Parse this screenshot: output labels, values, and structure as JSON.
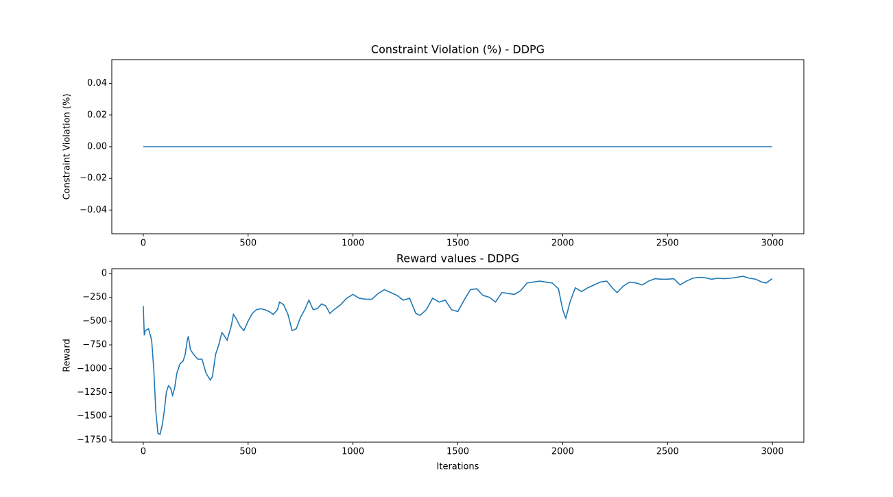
{
  "chart_data": [
    {
      "type": "line",
      "title": "Constraint Violation (%) - DDPG",
      "ylabel": "Constraint Violation (%)",
      "color": "#1f77b4",
      "x": [
        0,
        2999
      ],
      "values": [
        0,
        0
      ],
      "xlim": [
        -150,
        3150
      ],
      "xticks": [
        0,
        500,
        1000,
        1500,
        2000,
        2500,
        3000
      ],
      "ylim": [
        -0.055,
        0.055
      ],
      "yticks": [
        {
          "value": -0.04,
          "label": "−0.04"
        },
        {
          "value": -0.02,
          "label": "−0.02"
        },
        {
          "value": 0,
          "label": "0.00"
        },
        {
          "value": 0.02,
          "label": "0.02"
        },
        {
          "value": 0.04,
          "label": "0.04"
        }
      ]
    },
    {
      "type": "line",
      "title": "Reward values - DDPG",
      "ylabel": "Reward",
      "xlabel": "Iterations",
      "color": "#1f77b4",
      "x": [
        0,
        5,
        10,
        25,
        40,
        50,
        60,
        70,
        80,
        90,
        100,
        110,
        120,
        130,
        140,
        150,
        160,
        175,
        190,
        200,
        210,
        215,
        225,
        240,
        260,
        280,
        300,
        320,
        330,
        345,
        360,
        375,
        385,
        400,
        420,
        430,
        445,
        460,
        480,
        500,
        520,
        540,
        560,
        580,
        600,
        620,
        640,
        650,
        670,
        690,
        710,
        730,
        750,
        770,
        790,
        810,
        830,
        850,
        870,
        890,
        910,
        940,
        970,
        1000,
        1030,
        1060,
        1090,
        1120,
        1150,
        1180,
        1210,
        1240,
        1270,
        1300,
        1320,
        1350,
        1380,
        1410,
        1440,
        1470,
        1500,
        1530,
        1560,
        1590,
        1620,
        1650,
        1680,
        1710,
        1740,
        1770,
        1800,
        1830,
        1860,
        1890,
        1920,
        1950,
        1980,
        2000,
        2015,
        2035,
        2060,
        2090,
        2120,
        2150,
        2180,
        2210,
        2240,
        2260,
        2290,
        2320,
        2350,
        2380,
        2410,
        2440,
        2470,
        2500,
        2530,
        2560,
        2590,
        2620,
        2650,
        2680,
        2710,
        2740,
        2770,
        2800,
        2830,
        2860,
        2890,
        2920,
        2950,
        2970,
        2999
      ],
      "values": [
        -340,
        -650,
        -600,
        -580,
        -700,
        -1000,
        -1450,
        -1680,
        -1690,
        -1600,
        -1450,
        -1250,
        -1180,
        -1200,
        -1280,
        -1200,
        -1050,
        -950,
        -920,
        -850,
        -700,
        -660,
        -800,
        -850,
        -900,
        -900,
        -1050,
        -1120,
        -1080,
        -850,
        -750,
        -620,
        -650,
        -700,
        -550,
        -430,
        -480,
        -550,
        -600,
        -500,
        -420,
        -380,
        -370,
        -380,
        -400,
        -430,
        -380,
        -300,
        -330,
        -430,
        -600,
        -580,
        -460,
        -380,
        -280,
        -380,
        -370,
        -320,
        -340,
        -420,
        -380,
        -330,
        -260,
        -220,
        -260,
        -270,
        -270,
        -210,
        -170,
        -200,
        -230,
        -280,
        -260,
        -420,
        -440,
        -380,
        -260,
        -300,
        -280,
        -380,
        -400,
        -280,
        -170,
        -160,
        -230,
        -250,
        -300,
        -200,
        -210,
        -220,
        -180,
        -100,
        -90,
        -80,
        -90,
        -100,
        -160,
        -380,
        -470,
        -300,
        -150,
        -190,
        -150,
        -120,
        -90,
        -80,
        -160,
        -200,
        -130,
        -90,
        -100,
        -120,
        -80,
        -55,
        -60,
        -60,
        -55,
        -120,
        -80,
        -50,
        -40,
        -45,
        -60,
        -50,
        -55,
        -50,
        -40,
        -30,
        -50,
        -60,
        -90,
        -100,
        -55
      ],
      "xlim": [
        -150,
        3150
      ],
      "xticks": [
        0,
        500,
        1000,
        1500,
        2000,
        2500,
        3000
      ],
      "ylim": [
        -1772,
        50
      ],
      "yticks": [
        {
          "value": -1750,
          "label": "−1750"
        },
        {
          "value": -1500,
          "label": "−1500"
        },
        {
          "value": -1250,
          "label": "−1250"
        },
        {
          "value": -1000,
          "label": "−1000"
        },
        {
          "value": -750,
          "label": "−750"
        },
        {
          "value": -500,
          "label": "−500"
        },
        {
          "value": -250,
          "label": "−250"
        },
        0
      ]
    }
  ]
}
